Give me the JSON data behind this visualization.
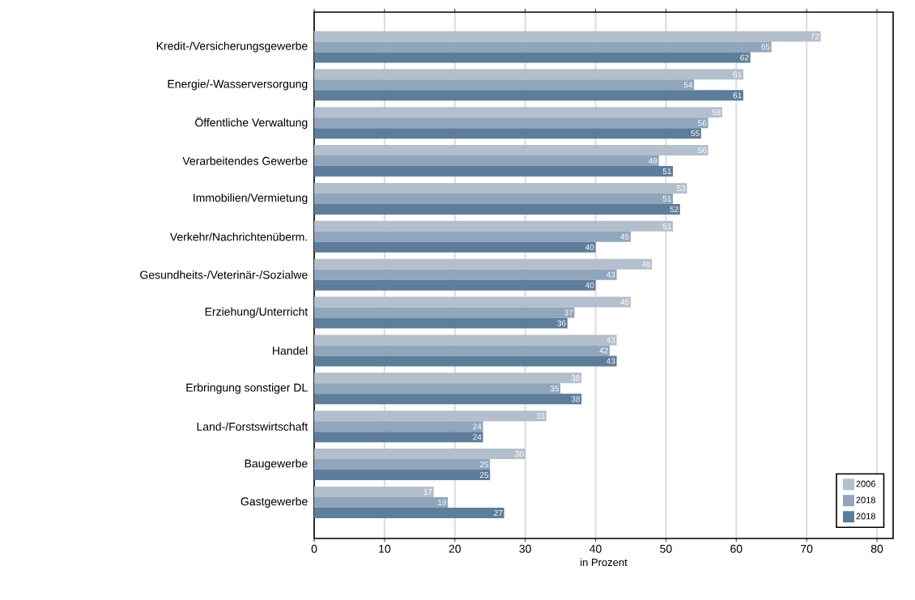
{
  "chart_data": {
    "type": "bar",
    "orientation": "horizontal",
    "xlabel": "in Prozent",
    "categories": [
      "Kredit-/Versicherungsgewerbe",
      "Energie/-Wasserversorgung",
      "Öffentliche Verwaltung",
      "Verarbeitendes Gewerbe",
      "Immobilien/Vermietung",
      "Verkehr/Nachrichtenüberm.",
      "Gesundheits-/Veterinär-/Sozialwe",
      "Erziehung/Unterricht",
      "Handel",
      "Erbringung sonstiger DL",
      "Land-/Forstswirtschaft",
      "Baugewerbe",
      "Gastgewerbe"
    ],
    "series": [
      {
        "name": "2006",
        "color": "#b4bfcc",
        "values": [
          72,
          61,
          58,
          56,
          53,
          51,
          48,
          45,
          43,
          38,
          33,
          30,
          17
        ]
      },
      {
        "name": "2018",
        "color": "#8fa6bc",
        "values": [
          65,
          54,
          56,
          49,
          51,
          45,
          43,
          37,
          42,
          35,
          24,
          25,
          19
        ]
      },
      {
        "name": "2018",
        "color": "#5e7d9b",
        "values": [
          62,
          61,
          55,
          51,
          52,
          40,
          40,
          36,
          43,
          38,
          24,
          25,
          27
        ]
      }
    ],
    "xlim": [
      0,
      82.3
    ],
    "xticks": [
      0,
      10,
      20,
      30,
      40,
      50,
      60,
      70,
      80
    ],
    "grid": "x",
    "legend": "bottom right",
    "data_labels": true
  }
}
